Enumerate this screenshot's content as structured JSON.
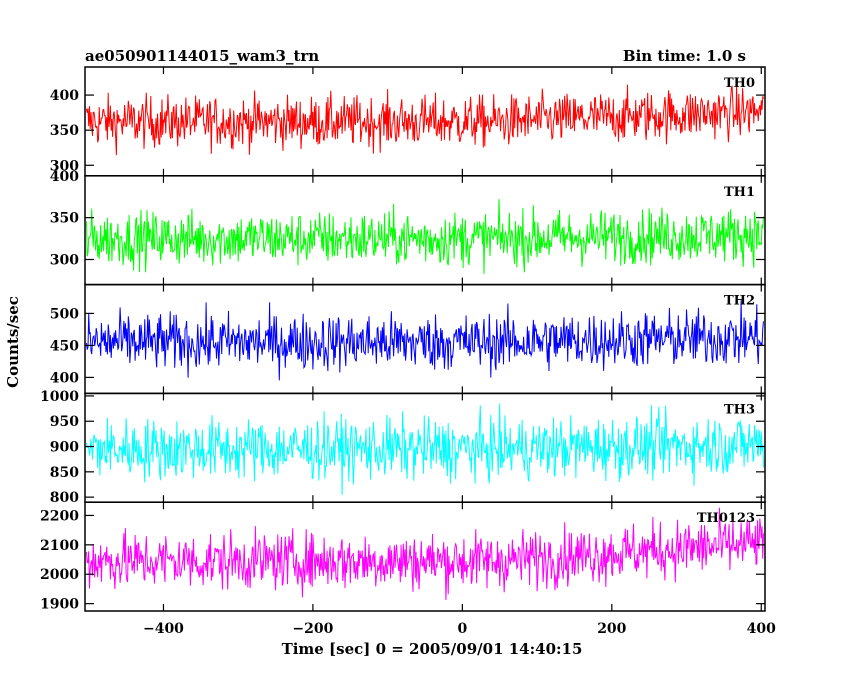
{
  "header": {
    "title": "ae050901144015_wam3_trn",
    "bin_time": "Bin time: 1.0 s"
  },
  "axes": {
    "xlabel": "Time [sec] 0 = 2005/09/01 14:40:15",
    "ylabel": "Counts/sec"
  },
  "chart_data": {
    "type": "line",
    "title": "ae050901144015_wam3_trn",
    "xlabel": "Time [sec] 0 = 2005/09/01 14:40:15",
    "ylabel": "Counts/sec",
    "xlim": [
      -505,
      405
    ],
    "x_ticks": [
      -400,
      -200,
      0,
      200,
      400
    ],
    "x_range": [
      -503,
      403
    ],
    "x_step": 1.0,
    "grid": false,
    "panels": [
      {
        "name": "TH0",
        "color": "#ff0000",
        "ylim": [
          285,
          440
        ],
        "y_ticks": [
          300,
          350,
          400
        ],
        "mean": 362,
        "spread": 18,
        "trend_end": 15
      },
      {
        "name": "TH1",
        "color": "#00ff00",
        "ylim": [
          270,
          400
        ],
        "y_ticks": [
          300,
          350,
          400
        ],
        "mean": 325,
        "spread": 16,
        "trend_end": 5
      },
      {
        "name": "TH2",
        "color": "#0000ff",
        "ylim": [
          375,
          545
        ],
        "y_ticks": [
          400,
          450,
          500
        ],
        "mean": 455,
        "spread": 22,
        "trend_end": 8
      },
      {
        "name": "TH3",
        "color": "#00ffff",
        "ylim": [
          790,
          1005
        ],
        "y_ticks": [
          800,
          850,
          900,
          950,
          1000
        ],
        "mean": 895,
        "spread": 30,
        "trend_end": 10
      },
      {
        "name": "TH0123",
        "color": "#ff00ff",
        "ylim": [
          1875,
          2245
        ],
        "y_ticks": [
          1900,
          2000,
          2100,
          2200
        ],
        "mean": 2045,
        "spread": 48,
        "trend_end": 60
      }
    ]
  }
}
